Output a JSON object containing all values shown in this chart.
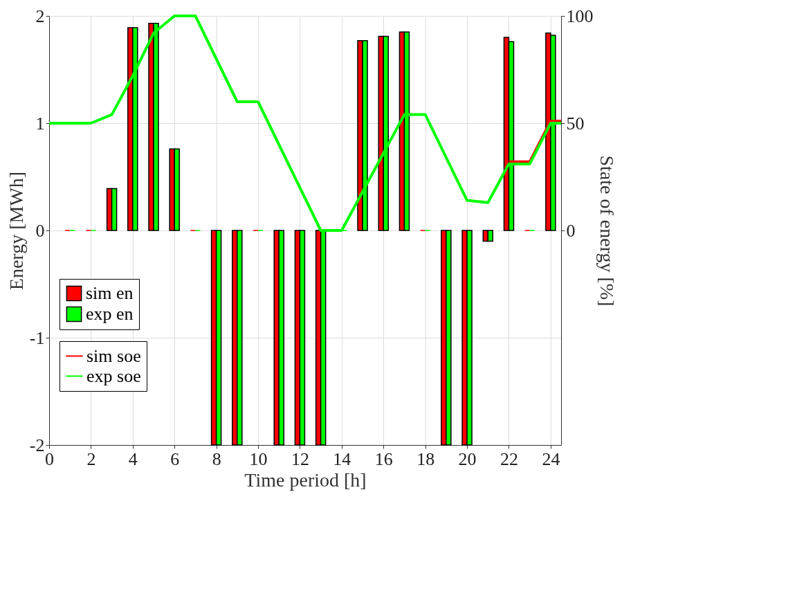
{
  "chart_data": {
    "type": "bar",
    "xlabel": "Time period [h]",
    "ylabel": "Energy [MWh]",
    "y2label": "State of energy [%]",
    "x": [
      1,
      2,
      3,
      4,
      5,
      6,
      7,
      8,
      9,
      10,
      11,
      12,
      13,
      14,
      15,
      16,
      17,
      18,
      19,
      20,
      21,
      22,
      23,
      24
    ],
    "xlim": [
      0,
      24.5
    ],
    "xticks": [
      0,
      2,
      4,
      6,
      8,
      10,
      12,
      14,
      16,
      18,
      20,
      22,
      24
    ],
    "ylim": [
      -2,
      2
    ],
    "yticks": [
      -2,
      -1,
      0,
      1,
      2
    ],
    "y2lim": [
      -100,
      100
    ],
    "y2ticks": [
      0,
      50,
      100
    ],
    "grid": true,
    "legend": "bottom left",
    "series": [
      {
        "name": "sim en",
        "color": "#ff0000",
        "values": [
          0,
          0,
          0.39,
          1.89,
          1.93,
          0.76,
          0,
          -2,
          -2,
          0,
          -2,
          -2,
          -2,
          0,
          1.77,
          1.81,
          1.85,
          0,
          -2,
          -2,
          -0.1,
          1.8,
          0,
          1.84
        ]
      },
      {
        "name": "exp en",
        "color": "#00ff00",
        "values": [
          0,
          0,
          0.39,
          1.89,
          1.93,
          0.76,
          0,
          -2,
          -2,
          0,
          -2,
          -2,
          -2,
          0,
          1.77,
          1.81,
          1.85,
          0,
          -2,
          -2,
          -0.1,
          1.76,
          0,
          1.82
        ]
      },
      {
        "name": "sim soe",
        "type": "line",
        "axis": "y2",
        "color": "#ff0000",
        "x": [
          22,
          23,
          24,
          24.5
        ],
        "values": [
          32,
          32,
          51,
          51
        ]
      },
      {
        "name": "exp soe",
        "type": "line",
        "axis": "y2",
        "color": "#00ff00",
        "x": [
          0,
          2,
          3,
          4,
          5,
          6,
          7,
          9,
          10,
          13,
          14,
          17,
          18,
          20,
          21,
          22,
          23,
          24,
          24.5
        ],
        "values": [
          50,
          50,
          54,
          72,
          92,
          100,
          100,
          60,
          60,
          0,
          0,
          54,
          54,
          14,
          13,
          31,
          31,
          50,
          50
        ]
      }
    ]
  }
}
